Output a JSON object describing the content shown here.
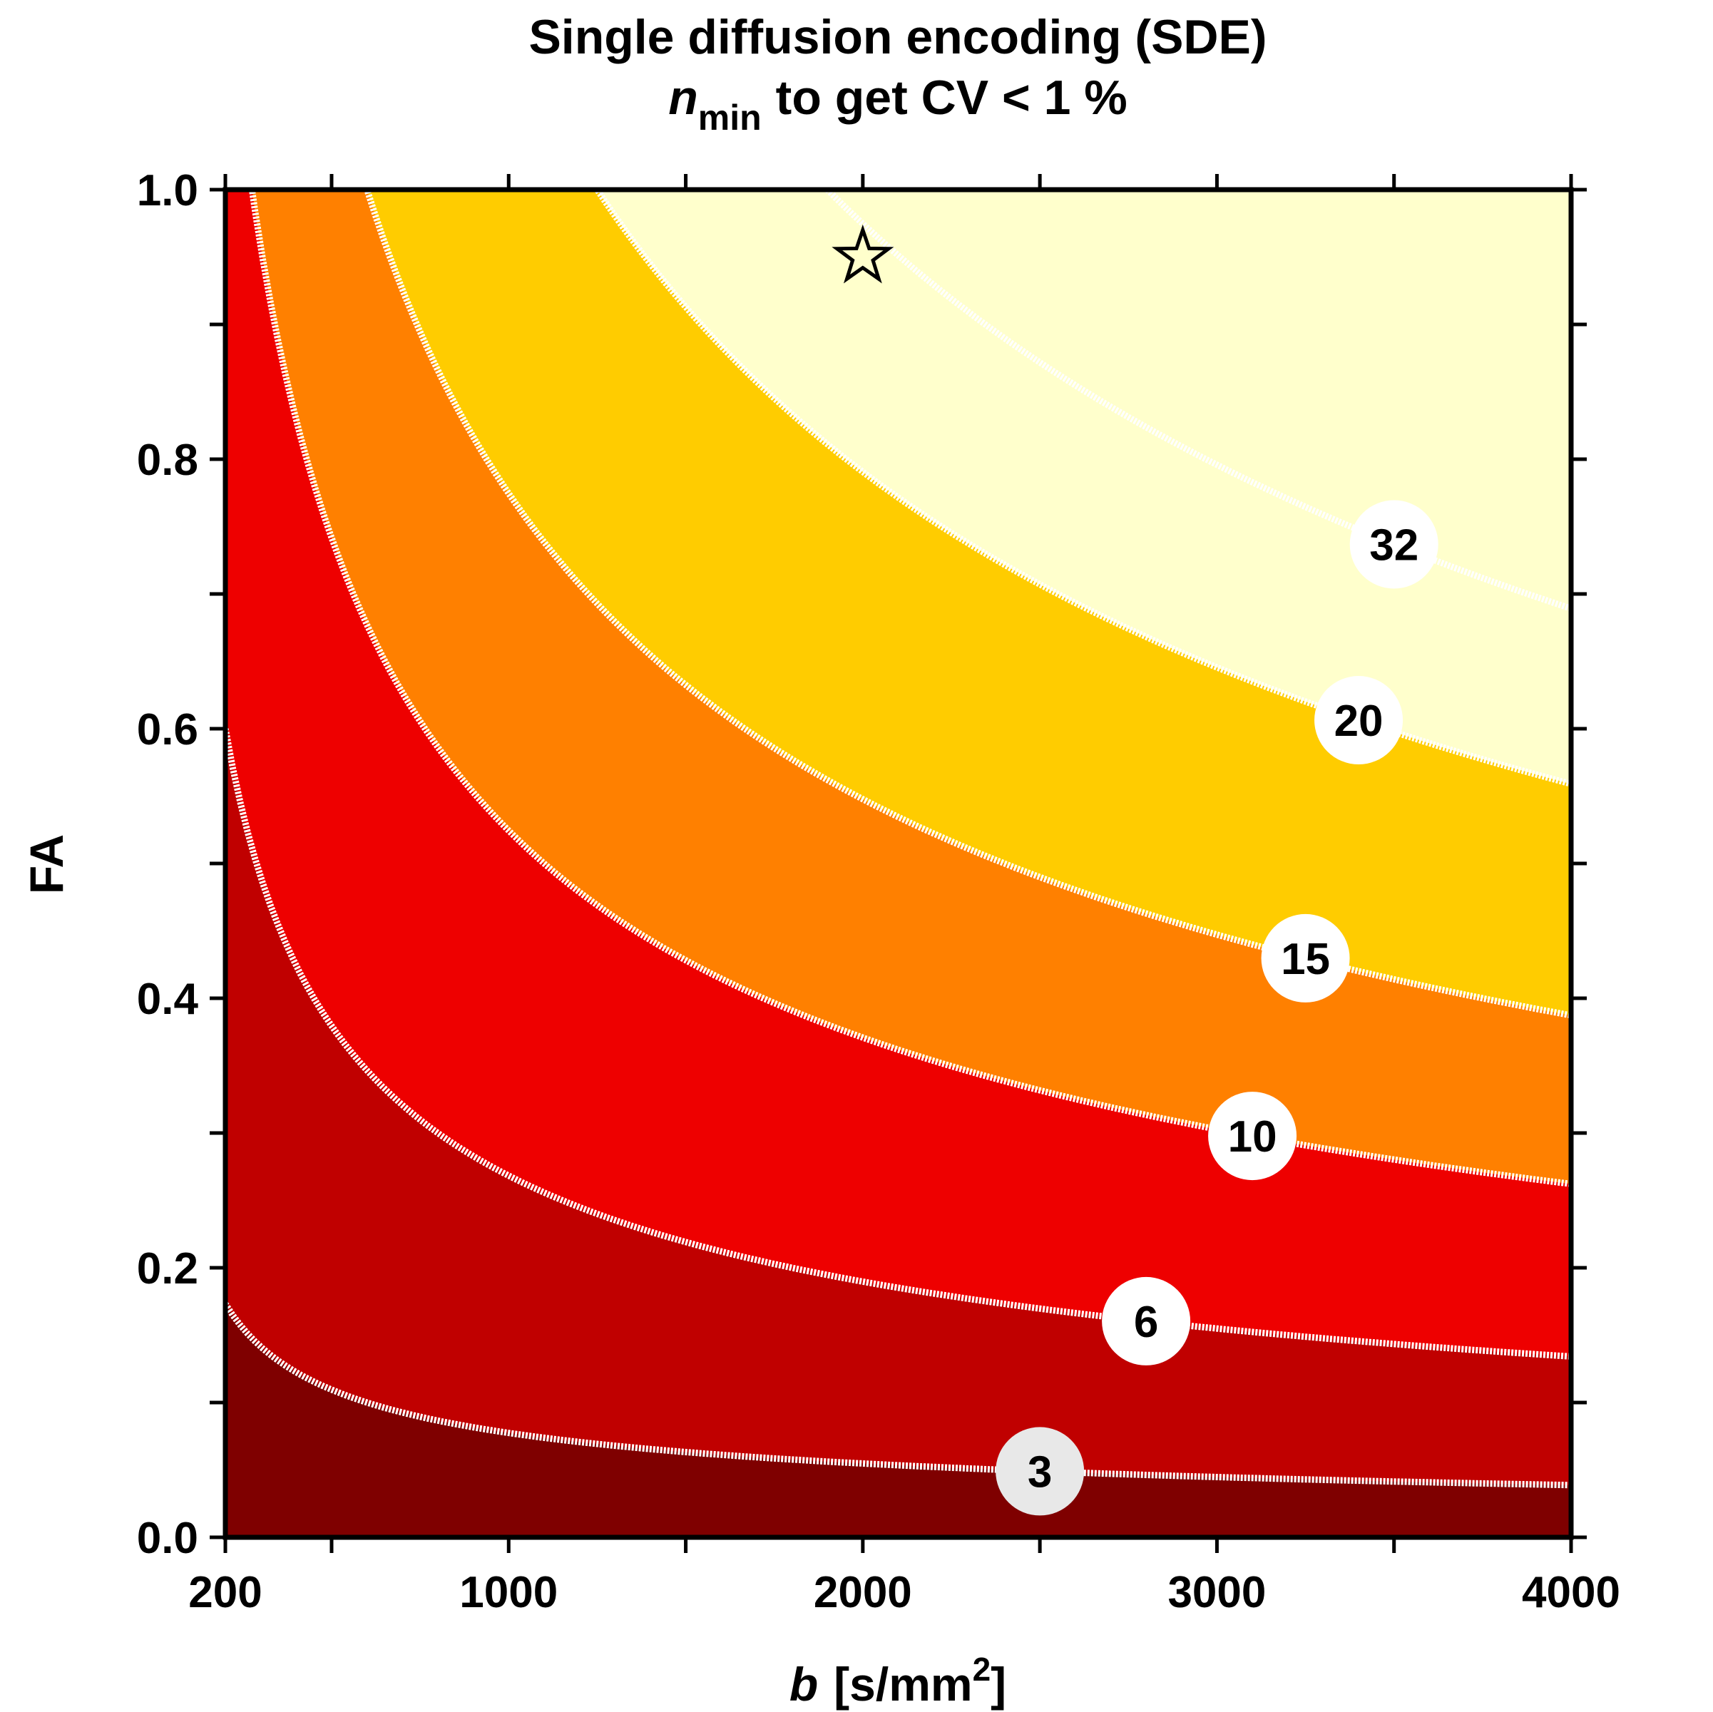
{
  "title": {
    "line1": "Single diffusion encoding (SDE)",
    "n_symbol": "n",
    "n_subscript": "min",
    "line2_rest": "to get CV < 1 %"
  },
  "x_axis": {
    "label_var": "b",
    "label_unit_pre": "[s/mm",
    "label_unit_sup": "2",
    "label_unit_post": "]"
  },
  "y_axis": {
    "label": "FA"
  },
  "chart_data": {
    "type": "contour",
    "title": "Single diffusion encoding (SDE) n_min to get CV < 1 %",
    "xlabel": "b [s/mm^2]",
    "ylabel": "FA",
    "xlim": [
      200,
      4000
    ],
    "ylim": [
      0,
      1
    ],
    "x_ticks": [
      200,
      1000,
      2000,
      3000,
      4000
    ],
    "x_tick_labels": [
      "200",
      "1000",
      "2000",
      "3000",
      "4000"
    ],
    "x_minor_ticks": [
      500,
      1500,
      2500,
      3500
    ],
    "y_ticks": [
      0,
      0.2,
      0.4,
      0.6,
      0.8,
      1.0
    ],
    "y_tick_labels": [
      "0.0",
      "0.2",
      "0.4",
      "0.6",
      "0.8",
      "1.0"
    ],
    "y_minor_ticks": [
      0.1,
      0.3,
      0.5,
      0.7,
      0.9
    ],
    "contour_model": "b * FA^2 = k",
    "contour_levels": [
      {
        "label": "3",
        "k": 6,
        "label_b": 2500,
        "fill": "#e8e8e8"
      },
      {
        "label": "6",
        "k": 72,
        "label_b": 2800,
        "fill": "#ffffff"
      },
      {
        "label": "10",
        "k": 275,
        "label_b": 3100,
        "fill": "#ffffff"
      },
      {
        "label": "15",
        "k": 600,
        "label_b": 3250,
        "fill": "#ffffff"
      },
      {
        "label": "20",
        "k": 1250,
        "label_b": 3400,
        "fill": "#ffffff"
      },
      {
        "label": "32",
        "k": 1900,
        "label_b": 3500,
        "fill": "#ffffff"
      }
    ],
    "region_colors": [
      "#7f0000",
      "#990000",
      "#c00000",
      "#ee0000",
      "#ff8000",
      "#ffcc00",
      "#ffffcc"
    ],
    "marker": {
      "type": "star",
      "b": 2000,
      "FA": 0.95
    }
  }
}
